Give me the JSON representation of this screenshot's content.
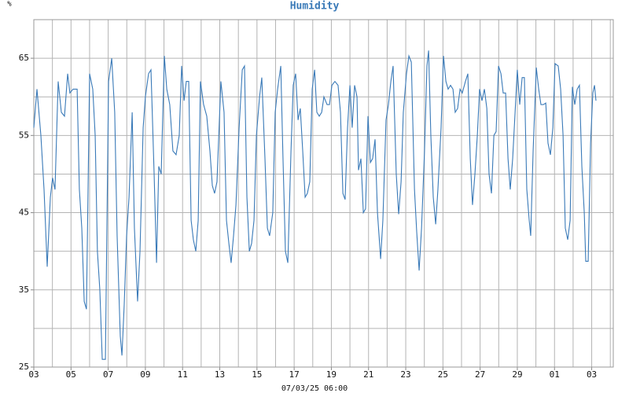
{
  "chart_data": {
    "type": "line",
    "title": "Humidity",
    "ylabel": "%",
    "xlabel": "07/03/25 06:00",
    "color": "#3a7ab8",
    "grid": true,
    "xlim": [
      0,
      31.16
    ],
    "ylim": [
      25,
      70
    ],
    "xticks": [
      {
        "value": 0,
        "label": "03"
      },
      {
        "value": 2,
        "label": "05"
      },
      {
        "value": 4,
        "label": "07"
      },
      {
        "value": 6,
        "label": "09"
      },
      {
        "value": 8,
        "label": "11"
      },
      {
        "value": 10,
        "label": "13"
      },
      {
        "value": 12,
        "label": "15"
      },
      {
        "value": 14,
        "label": "17"
      },
      {
        "value": 16,
        "label": "19"
      },
      {
        "value": 18,
        "label": "21"
      },
      {
        "value": 20,
        "label": "23"
      },
      {
        "value": 22,
        "label": "25"
      },
      {
        "value": 24,
        "label": "27"
      },
      {
        "value": 26,
        "label": "29"
      },
      {
        "value": 28,
        "label": "01"
      },
      {
        "value": 30,
        "label": "03"
      }
    ],
    "yticks": [
      25,
      35,
      45,
      55,
      65
    ],
    "x": [
      0,
      0.17,
      0.38,
      0.55,
      0.72,
      0.89,
      1.01,
      1.14,
      1.31,
      1.48,
      1.65,
      1.82,
      1.94,
      2.11,
      2.33,
      2.45,
      2.58,
      2.71,
      2.83,
      3.0,
      3.17,
      3.3,
      3.42,
      3.55,
      3.68,
      3.85,
      4.02,
      4.19,
      4.35,
      4.48,
      4.65,
      4.74,
      4.86,
      4.99,
      5.12,
      5.29,
      5.41,
      5.58,
      5.71,
      5.88,
      6.0,
      6.17,
      6.3,
      6.47,
      6.6,
      6.72,
      6.85,
      7.02,
      7.15,
      7.31,
      7.48,
      7.65,
      7.82,
      7.95,
      8.08,
      8.2,
      8.33,
      8.46,
      8.58,
      8.71,
      8.84,
      8.96,
      9.13,
      9.3,
      9.47,
      9.6,
      9.72,
      9.85,
      10.06,
      10.23,
      10.36,
      10.49,
      10.61,
      10.74,
      10.87,
      11.04,
      11.21,
      11.33,
      11.46,
      11.59,
      11.71,
      11.84,
      11.97,
      12.14,
      12.26,
      12.43,
      12.56,
      12.68,
      12.85,
      12.98,
      13.11,
      13.28,
      13.4,
      13.53,
      13.66,
      13.83,
      13.95,
      14.08,
      14.21,
      14.33,
      14.46,
      14.59,
      14.71,
      14.84,
      14.97,
      15.1,
      15.22,
      15.35,
      15.48,
      15.6,
      15.77,
      15.9,
      16.03,
      16.19,
      16.36,
      16.49,
      16.62,
      16.74,
      16.87,
      17.0,
      17.12,
      17.25,
      17.38,
      17.46,
      17.59,
      17.72,
      17.84,
      17.97,
      18.1,
      18.22,
      18.35,
      18.48,
      18.65,
      18.77,
      18.94,
      19.07,
      19.2,
      19.32,
      19.49,
      19.62,
      19.75,
      19.87,
      20.04,
      20.17,
      20.3,
      20.47,
      20.59,
      20.72,
      20.85,
      21.01,
      21.14,
      21.23,
      21.35,
      21.48,
      21.61,
      21.73,
      21.9,
      22.03,
      22.16,
      22.28,
      22.41,
      22.54,
      22.66,
      22.79,
      22.92,
      23.04,
      23.21,
      23.34,
      23.47,
      23.59,
      23.72,
      23.85,
      23.97,
      24.1,
      24.23,
      24.36,
      24.48,
      24.61,
      24.74,
      24.86,
      24.99,
      25.12,
      25.24,
      25.37,
      25.5,
      25.62,
      25.75,
      25.88,
      26.0,
      26.13,
      26.26,
      26.38,
      26.51,
      26.64,
      26.72,
      26.85,
      27.02,
      27.15,
      27.27,
      27.4,
      27.53,
      27.65,
      27.78,
      27.91,
      28.03,
      28.2,
      28.33,
      28.46,
      28.58,
      28.71,
      28.84,
      28.96,
      29.09,
      29.22,
      29.34,
      29.47,
      29.6,
      29.68,
      29.81,
      29.94,
      30.06,
      30.15,
      30.23
    ],
    "values": [
      56,
      61,
      55,
      48,
      38,
      47,
      49.5,
      48,
      62,
      58,
      57.5,
      63,
      60.5,
      61,
      61,
      48,
      43,
      33.5,
      32.5,
      63,
      61,
      55,
      40,
      35,
      26,
      26,
      62,
      65,
      58,
      42,
      29,
      26.5,
      33,
      42,
      47,
      58,
      43,
      33.5,
      40,
      56,
      60,
      63,
      63.5,
      50,
      38.5,
      51,
      50,
      65.3,
      61,
      59,
      53,
      52.5,
      55,
      64,
      59.5,
      62,
      62,
      44,
      41.5,
      40,
      44,
      62,
      59,
      57.5,
      53,
      48.5,
      47.5,
      49,
      62,
      58,
      44,
      41,
      38.5,
      42,
      46,
      56,
      63.5,
      64,
      47,
      40,
      41,
      44,
      55,
      60,
      62.5,
      52,
      43,
      42,
      45,
      58,
      61,
      64,
      52,
      40,
      38.5,
      53,
      61.5,
      63,
      57,
      58.5,
      53,
      47,
      47.5,
      49,
      61,
      63.5,
      58,
      57.5,
      58,
      60,
      59,
      59,
      61.5,
      62,
      61.5,
      58,
      47.5,
      46.7,
      56,
      61.5,
      56,
      61.5,
      60,
      50.5,
      52,
      45,
      45.5,
      57.5,
      51.5,
      52,
      54.5,
      45,
      39,
      44,
      57,
      59,
      62,
      64,
      50,
      44.8,
      49,
      58,
      63,
      65.3,
      64.5,
      48,
      42.5,
      37.5,
      43,
      53,
      64,
      66,
      55,
      47,
      43.5,
      48,
      56,
      65.3,
      62,
      61,
      61.5,
      61,
      58,
      58.5,
      61,
      60.5,
      62,
      63,
      52,
      46,
      50,
      55,
      61,
      59.5,
      61,
      58.5,
      50,
      47.5,
      55,
      55.5,
      64,
      63,
      60.5,
      60.5,
      52,
      48,
      52,
      58,
      63.5,
      59,
      62.5,
      62.5,
      48,
      44,
      42,
      53,
      63.8,
      61,
      59,
      59,
      59.2,
      54,
      52.5,
      56,
      64.3,
      64,
      61,
      55,
      43,
      41.5,
      44,
      61.3,
      59,
      61,
      61.5,
      51,
      45,
      38.7,
      38.7,
      54,
      60.5,
      61.5,
      59.5
    ]
  }
}
